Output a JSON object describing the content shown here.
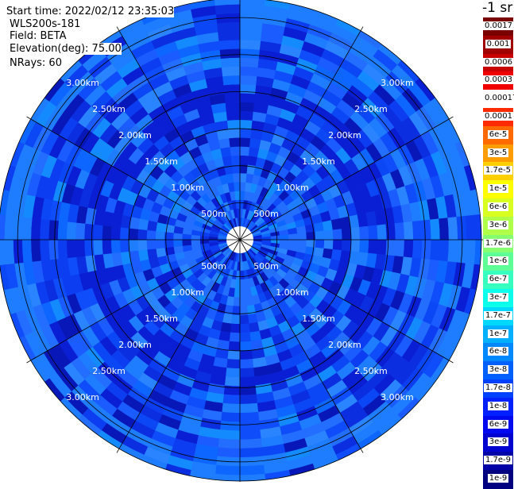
{
  "info": {
    "start_time": "Start time: 2022/02/12 23:35:03",
    "instrument": "WLS200s-181",
    "field": "Field: BETA",
    "elevation": "Elevation(deg): 75.00",
    "nrays": "NRays: 60"
  },
  "colorbar": {
    "unit": "-1 sr",
    "ticks": [
      "0.0017",
      "0.001",
      "0.0006",
      "0.0003",
      "0.00017",
      "0.0001",
      "6e-5",
      "3e-5",
      "1.7e-5",
      "1e-5",
      "6e-6",
      "3e-6",
      "1.7e-6",
      "1e-6",
      "6e-7",
      "3e-7",
      "1.7e-7",
      "1e-7",
      "6e-8",
      "3e-8",
      "1.7e-8",
      "1e-8",
      "6e-9",
      "3e-9",
      "1.7e-9",
      "1e-9"
    ],
    "colors": [
      "#7a0000",
      "#a00000",
      "#c80000",
      "#f00000",
      "#ffffff",
      "#ff2a00",
      "#ff6a00",
      "#ff9d00",
      "#ffd000",
      "#fffe00",
      "#d8ff20",
      "#b0ff48",
      "#86ff70",
      "#5fff98",
      "#36ffc0",
      "#0cffea",
      "#00d8ff",
      "#00b0ff",
      "#0088ff",
      "#0060ff",
      "#0040ff",
      "#0020ff",
      "#0008f0",
      "#0000d0",
      "#0000a8",
      "#000080"
    ]
  },
  "chart_data": {
    "type": "heatmap",
    "projection": "polar (PPI)",
    "field": "BETA",
    "elevation_deg": 75.0,
    "n_rays": 60,
    "range_rings": [
      "500m",
      "1.00km",
      "1.50km",
      "2.00km",
      "2.50km",
      "3.00km"
    ],
    "range_rings_km": [
      0.5,
      1.0,
      1.5,
      2.0,
      2.5,
      3.0
    ],
    "value_range": "1e-9 to 0.0017 sr-1, log color scale",
    "dominant_values": "mostly 1e-8 to 1e-7 (blue)",
    "spokes_deg": [
      0,
      30,
      60,
      90,
      120,
      150,
      180,
      210,
      240,
      270,
      300,
      330
    ]
  }
}
